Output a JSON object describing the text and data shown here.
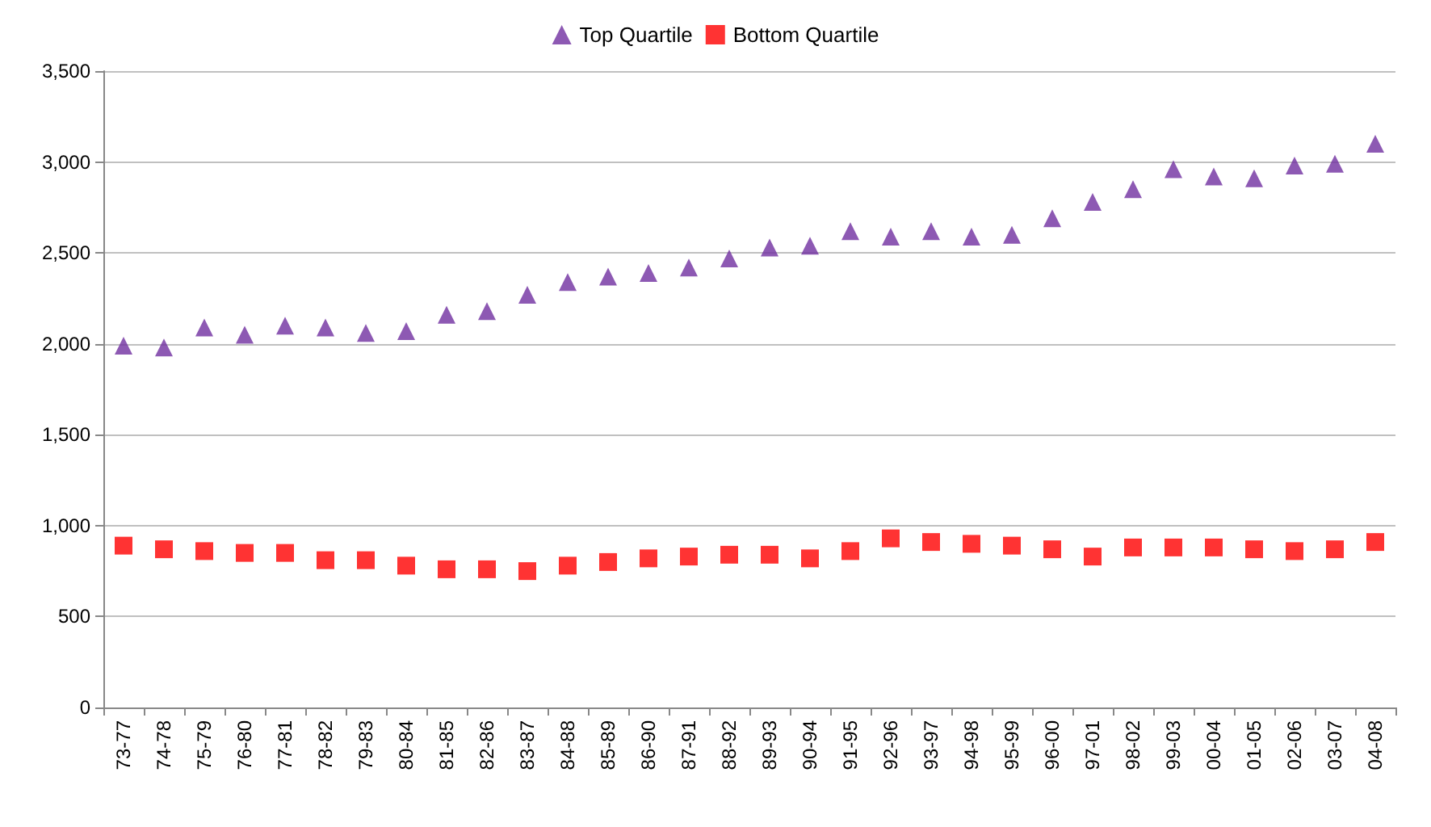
{
  "chart_data": {
    "type": "scatter",
    "categories": [
      "73-77",
      "74-78",
      "75-79",
      "76-80",
      "77-81",
      "78-82",
      "79-83",
      "80-84",
      "81-85",
      "82-86",
      "83-87",
      "84-88",
      "85-89",
      "86-90",
      "87-91",
      "88-92",
      "89-93",
      "90-94",
      "91-95",
      "92-96",
      "93-97",
      "94-98",
      "95-99",
      "96-00",
      "97-01",
      "98-02",
      "99-03",
      "00-04",
      "01-05",
      "02-06",
      "03-07",
      "04-08"
    ],
    "series": [
      {
        "name": "Top Quartile",
        "color": "#7030a0",
        "marker": "triangle",
        "values": [
          1990,
          1980,
          2090,
          2050,
          2100,
          2090,
          2060,
          2070,
          2160,
          2180,
          2270,
          2340,
          2370,
          2390,
          2420,
          2470,
          2530,
          2540,
          2620,
          2590,
          2620,
          2590,
          2600,
          2690,
          2780,
          2850,
          2960,
          2920,
          2910,
          2980,
          2990,
          3100
        ]
      },
      {
        "name": "Bottom Quartile",
        "color": "#ff0000",
        "marker": "square",
        "values": [
          890,
          870,
          860,
          850,
          850,
          810,
          810,
          780,
          760,
          760,
          750,
          780,
          800,
          820,
          830,
          840,
          840,
          820,
          860,
          930,
          910,
          900,
          890,
          870,
          830,
          880,
          880,
          880,
          870,
          860,
          870,
          910
        ]
      }
    ],
    "ylim": [
      0,
      3500
    ],
    "yticks": [
      {
        "value": 0,
        "label": "0"
      },
      {
        "value": 500,
        "label": "500"
      },
      {
        "value": 1000,
        "label": "1,000"
      },
      {
        "value": 1500,
        "label": "1,500"
      },
      {
        "value": 2000,
        "label": "2,000"
      },
      {
        "value": 2500,
        "label": "2,500"
      },
      {
        "value": 3000,
        "label": "3,000"
      },
      {
        "value": 3500,
        "label": "3,500"
      }
    ],
    "grid": "y",
    "legend": "top"
  }
}
